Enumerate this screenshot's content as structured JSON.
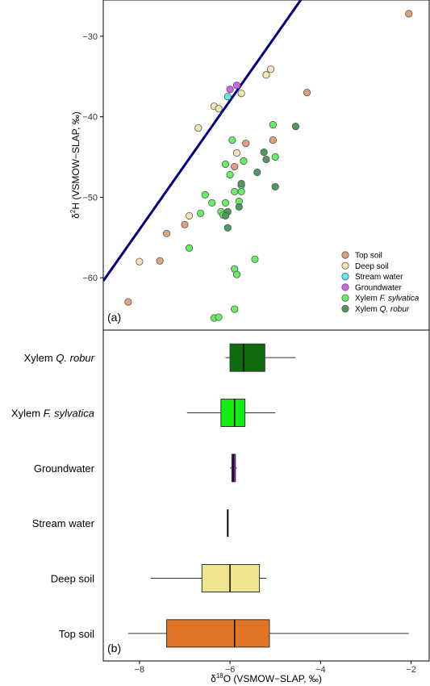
{
  "chart_data": [
    {
      "type": "scatter",
      "panel_label": "(a)",
      "xlim": [
        -8.8,
        -1.6
      ],
      "ylim": [
        -66.5,
        -25.5
      ],
      "y_ticks": [
        -60,
        -50,
        -40,
        -30
      ],
      "y_tick_labels": [
        "−60",
        "−50",
        "−40",
        "−30"
      ],
      "ylabel_prefix": "δ",
      "ylabel_sup": "2",
      "ylabel_rest": "H (VSMOW−SLAP, ‰)",
      "grid": false,
      "legend_position": "bottom-right",
      "reference_line": {
        "slope": 8,
        "intercept": 10,
        "color": "#000080"
      },
      "series": [
        {
          "name": "Top soil",
          "name_plain": "Top soil",
          "name_italic": "",
          "color": "#e0a27c",
          "points": [
            [
              -2.05,
              -27.2
            ],
            [
              -4.3,
              -37.0
            ],
            [
              -5.65,
              -43.3
            ],
            [
              -5.05,
              -42.9
            ],
            [
              -5.9,
              -46.2
            ],
            [
              -7.0,
              -53.4
            ],
            [
              -7.4,
              -54.5
            ],
            [
              -7.55,
              -57.9
            ],
            [
              -8.25,
              -63.0
            ]
          ]
        },
        {
          "name": "Deep soil",
          "name_plain": "Deep soil",
          "name_italic": "",
          "color": "#f5e6b5",
          "points": [
            [
              -5.1,
              -34.1
            ],
            [
              -5.2,
              -34.8
            ],
            [
              -5.75,
              -37.1
            ],
            [
              -6.35,
              -38.7
            ],
            [
              -6.25,
              -39.0
            ],
            [
              -6.7,
              -41.4
            ],
            [
              -5.85,
              -44.5
            ],
            [
              -6.9,
              -52.3
            ],
            [
              -8.0,
              -58.0
            ]
          ]
        },
        {
          "name": "Stream water",
          "name_plain": "Stream water",
          "name_italic": "",
          "color": "#66e8f2",
          "points": [
            [
              -6.05,
              -37.5
            ]
          ]
        },
        {
          "name": "Groundwater",
          "name_plain": "Groundwater",
          "name_italic": "",
          "color": "#cc66ee",
          "points": [
            [
              -5.85,
              -36.1
            ],
            [
              -6.0,
              -36.6
            ]
          ]
        },
        {
          "name": "Xylem F. sylvatica",
          "name_plain": "Xylem ",
          "name_italic": "F. sylvatica",
          "color": "#66ee66",
          "points": [
            [
              -5.95,
              -42.9
            ],
            [
              -5.05,
              -41.0
            ],
            [
              -5.7,
              -45.5
            ],
            [
              -5.0,
              -45.0
            ],
            [
              -6.1,
              -45.9
            ],
            [
              -6.0,
              -47.2
            ],
            [
              -5.75,
              -48.5
            ],
            [
              -5.9,
              -49.3
            ],
            [
              -5.75,
              -49.3
            ],
            [
              -6.55,
              -49.7
            ],
            [
              -6.4,
              -50.7
            ],
            [
              -6.1,
              -50.7
            ],
            [
              -5.8,
              -50.5
            ],
            [
              -6.2,
              -51.8
            ],
            [
              -6.65,
              -52.0
            ],
            [
              -6.15,
              -52.2
            ],
            [
              -6.9,
              -56.3
            ],
            [
              -5.45,
              -57.7
            ],
            [
              -5.9,
              -58.9
            ],
            [
              -5.85,
              -59.6
            ],
            [
              -5.9,
              -63.9
            ],
            [
              -6.35,
              -65.0
            ],
            [
              -6.25,
              -64.9
            ]
          ]
        },
        {
          "name": "Xylem Q. robur",
          "name_plain": "Xylem ",
          "name_italic": "Q. robur",
          "color": "#4e9a5a",
          "points": [
            [
              -4.55,
              -41.2
            ],
            [
              -5.25,
              -44.4
            ],
            [
              -5.2,
              -45.3
            ],
            [
              -5.4,
              -46.9
            ],
            [
              -5.75,
              -48.3
            ],
            [
              -5.0,
              -48.7
            ],
            [
              -5.8,
              -51.2
            ],
            [
              -6.05,
              -51.8
            ],
            [
              -6.1,
              -52.3
            ],
            [
              -6.05,
              -53.8
            ]
          ]
        }
      ]
    },
    {
      "type": "box",
      "panel_label": "(b)",
      "xlim": [
        -8.8,
        -1.6
      ],
      "x_ticks": [
        -8,
        -6,
        -4,
        -2
      ],
      "x_tick_labels": [
        "−8",
        "−6",
        "−4",
        "−2"
      ],
      "xlabel_prefix": "δ",
      "xlabel_sup": "18",
      "xlabel_rest": "O (VSMOW−SLAP, ‰)",
      "grid": false,
      "categories": [
        {
          "name": "Xylem Q. robur",
          "label_plain": "Xylem ",
          "label_italic": "Q. robur",
          "color": "#0d6b0d",
          "whisker_low": -6.1,
          "q1": -6.0,
          "median": -5.7,
          "q3": -5.23,
          "whisker_high": -4.55
        },
        {
          "name": "Xylem F. sylvatica",
          "label_plain": "Xylem ",
          "label_italic": "F. sylvatica",
          "color": "#11ee11",
          "whisker_low": -6.95,
          "q1": -6.2,
          "median": -5.9,
          "q3": -5.67,
          "whisker_high": -5.0
        },
        {
          "name": "Groundwater",
          "label_plain": "Groundwater",
          "label_italic": "",
          "color": "#7b22b5",
          "whisker_low": -6.0,
          "q1": -5.96,
          "median": -5.93,
          "q3": -5.88,
          "whisker_high": -5.85
        },
        {
          "name": "Stream water",
          "label_plain": "Stream water",
          "label_italic": "",
          "color": "#000000",
          "whisker_low": -6.05,
          "q1": -6.05,
          "median": -6.05,
          "q3": -6.05,
          "whisker_high": -6.05
        },
        {
          "name": "Deep soil",
          "label_plain": "Deep soil",
          "label_italic": "",
          "color": "#f0e58e",
          "whisker_low": -7.75,
          "q1": -6.62,
          "median": -6.0,
          "q3": -5.35,
          "whisker_high": -5.2
        },
        {
          "name": "Top soil",
          "label_plain": "Top soil",
          "label_italic": "",
          "color": "#e07526",
          "whisker_low": -8.25,
          "q1": -7.4,
          "median": -5.9,
          "q3": -5.13,
          "whisker_high": -2.05
        }
      ]
    }
  ]
}
